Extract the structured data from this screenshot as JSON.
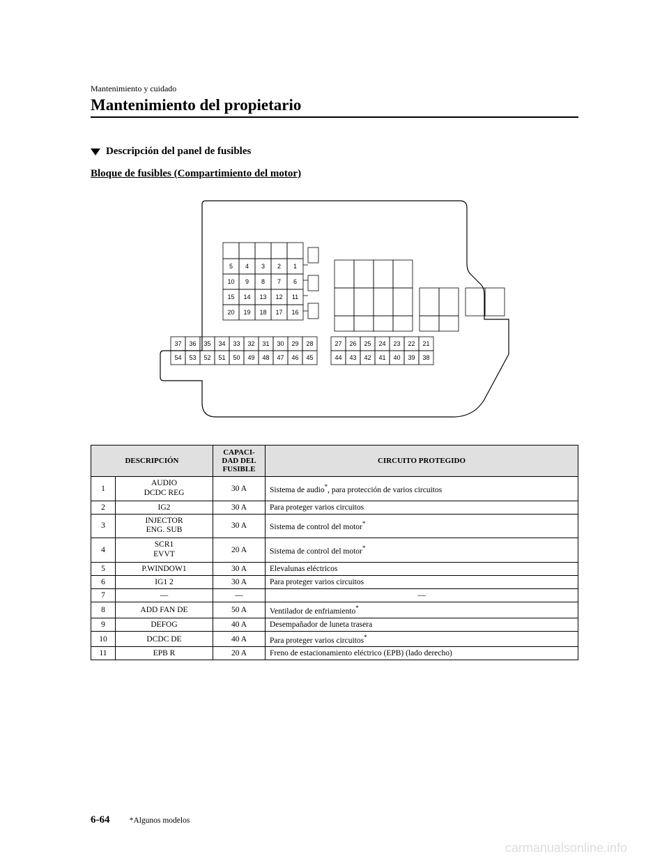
{
  "header": {
    "small": "Mantenimiento y cuidado",
    "large": "Mantenimiento del propietario"
  },
  "section": {
    "title": "Descripción del panel de fusibles",
    "block_title": "Bloque de fusibles (Compartimiento del motor)"
  },
  "diagram": {
    "small_grid": {
      "rows": [
        [
          "5",
          "4",
          "3",
          "2",
          "1"
        ],
        [
          "10",
          "9",
          "8",
          "7",
          "6"
        ],
        [
          "15",
          "14",
          "13",
          "12",
          "11"
        ],
        [
          "20",
          "19",
          "18",
          "17",
          "16"
        ]
      ]
    },
    "bottom_left": {
      "rows": [
        [
          "37",
          "36",
          "35",
          "34",
          "33",
          "32",
          "31",
          "30",
          "29",
          "28"
        ],
        [
          "54",
          "53",
          "52",
          "51",
          "50",
          "49",
          "48",
          "47",
          "46",
          "45"
        ]
      ]
    },
    "bottom_right": {
      "rows": [
        [
          "27",
          "26",
          "25",
          "24",
          "23",
          "22",
          "21"
        ],
        [
          "44",
          "43",
          "42",
          "41",
          "40",
          "39",
          "38"
        ]
      ]
    }
  },
  "table": {
    "headers": {
      "desc": "DESCRIPCIÓN",
      "cap": "CAPACI-\nDAD DEL\nFUSIBLE",
      "circuit": "CIRCUITO PROTEGIDO"
    },
    "rows": [
      {
        "n": "1",
        "desc": "AUDIO\nDCDC REG",
        "cap": "30 A",
        "circuit": "Sistema de audio*, para protección de varios circuitos"
      },
      {
        "n": "2",
        "desc": "IG2",
        "cap": "30 A",
        "circuit": "Para proteger varios circuitos"
      },
      {
        "n": "3",
        "desc": "INJECTOR\nENG. SUB",
        "cap": "30 A",
        "circuit": "Sistema de control del motor*"
      },
      {
        "n": "4",
        "desc": "SCR1\nEVVT",
        "cap": "20 A",
        "circuit": "Sistema de control del motor*"
      },
      {
        "n": "5",
        "desc": "P.WINDOW1",
        "cap": "30 A",
        "circuit": "Elevalunas eléctricos"
      },
      {
        "n": "6",
        "desc": "IG1 2",
        "cap": "30 A",
        "circuit": "Para proteger varios circuitos"
      },
      {
        "n": "7",
        "desc": "―",
        "cap": "―",
        "circuit": "―"
      },
      {
        "n": "8",
        "desc": "ADD FAN DE",
        "cap": "50 A",
        "circuit": "Ventilador de enfriamiento*"
      },
      {
        "n": "9",
        "desc": "DEFOG",
        "cap": "40 A",
        "circuit": "Desempañador de luneta trasera"
      },
      {
        "n": "10",
        "desc": "DCDC DE",
        "cap": "40 A",
        "circuit": "Para proteger varios circuitos*"
      },
      {
        "n": "11",
        "desc": "EPB R",
        "cap": "20 A",
        "circuit": "Freno de estacionamiento eléctrico (EPB) (lado derecho)"
      }
    ]
  },
  "footer": {
    "page": "6-64",
    "note": "*Algunos modelos"
  },
  "watermark": "carmanualsonline.info",
  "colors": {
    "header_bg": "#e0e0e0",
    "border": "#000000",
    "text": "#000000",
    "watermark": "#dddddd"
  }
}
